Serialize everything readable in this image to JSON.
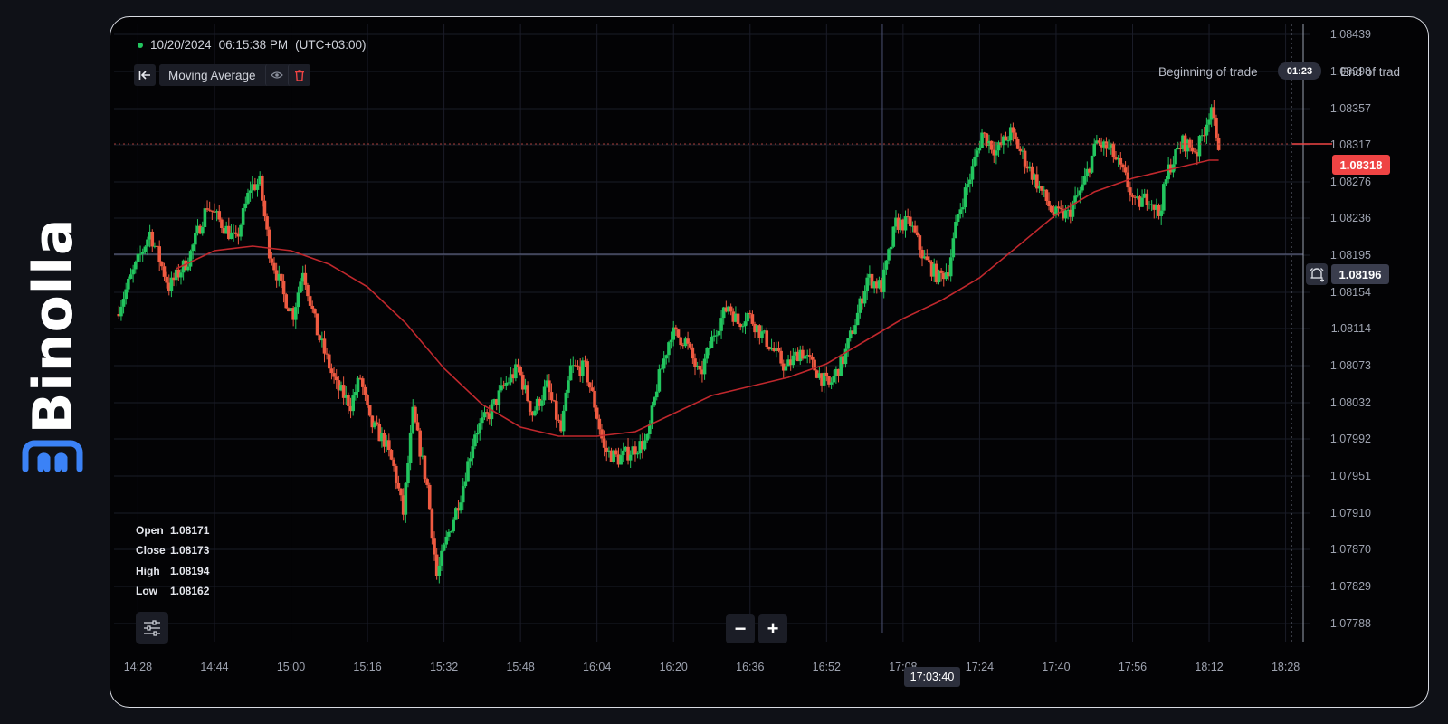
{
  "brand": {
    "name": "Binolla"
  },
  "header": {
    "datetime": "10/20/2024",
    "time": "06:15:38 PM",
    "timezone": "(UTC+03:00)"
  },
  "indicator": {
    "name": "Moving Average"
  },
  "trade": {
    "beginning_label": "Beginning of trade",
    "end_label": "End of trad",
    "timer": "01:23"
  },
  "current_price": "1.08318",
  "line_price": "1.08196",
  "crosshair_time": "17:03:40",
  "ohlc": {
    "open_label": "Open",
    "open": "1.08171",
    "close_label": "Close",
    "close": "1.08173",
    "high_label": "High",
    "high": "1.08194",
    "low_label": "Low",
    "low": "1.08162"
  },
  "zoom": {
    "out": "−",
    "in": "+"
  },
  "colors": {
    "up": "#22c55e",
    "down": "#ef5a41",
    "ma": "#c0282d",
    "price_badge": "#ef4444",
    "grid": "#1a1c28"
  },
  "chart_data": {
    "type": "candlestick",
    "y_ticks": [
      "1.08439",
      "1.08398",
      "1.08357",
      "1.08317",
      "1.08276",
      "1.08236",
      "1.08195",
      "1.08154",
      "1.08114",
      "1.08073",
      "1.08032",
      "1.07992",
      "1.07951",
      "1.07910",
      "1.07870",
      "1.07829",
      "1.07788"
    ],
    "x_ticks": [
      "14:28",
      "14:44",
      "15:00",
      "15:16",
      "15:32",
      "15:48",
      "16:04",
      "16:20",
      "16:36",
      "16:52",
      "17:08",
      "17:24",
      "17:40",
      "17:56",
      "18:12",
      "18:28"
    ],
    "ylim": [
      1.07768,
      1.0845
    ],
    "xlim": [
      "14:23",
      "18:33"
    ],
    "anchors": [
      [
        "14:24",
        1.0813
      ],
      [
        "14:27",
        1.0817
      ],
      [
        "14:31",
        1.0822
      ],
      [
        "14:35",
        1.0816
      ],
      [
        "14:39",
        1.0819
      ],
      [
        "14:43",
        1.0825
      ],
      [
        "14:46",
        1.0823
      ],
      [
        "14:49",
        1.0821
      ],
      [
        "14:52",
        1.0827
      ],
      [
        "14:54",
        1.08275
      ],
      [
        "14:56",
        1.082
      ],
      [
        "14:59",
        1.0815
      ],
      [
        "15:01",
        1.0813
      ],
      [
        "15:03",
        1.0818
      ],
      [
        "15:06",
        1.0811
      ],
      [
        "15:10",
        1.0805
      ],
      [
        "15:13",
        1.0803
      ],
      [
        "15:15",
        1.0806
      ],
      [
        "15:17",
        1.0801
      ],
      [
        "15:20",
        1.0799
      ],
      [
        "15:22",
        1.0796
      ],
      [
        "15:24",
        1.0791
      ],
      [
        "15:26",
        1.0802
      ],
      [
        "15:29",
        1.0794
      ],
      [
        "15:31",
        1.0784
      ],
      [
        "15:33",
        1.0788
      ],
      [
        "15:36",
        1.0793
      ],
      [
        "15:39",
        1.08
      ],
      [
        "15:42",
        1.0802
      ],
      [
        "15:45",
        1.0805
      ],
      [
        "15:48",
        1.0807
      ],
      [
        "15:51",
        1.0802
      ],
      [
        "15:54",
        1.0805
      ],
      [
        "15:57",
        1.08
      ],
      [
        "15:59",
        1.0807
      ],
      [
        "16:02",
        1.0807
      ],
      [
        "16:04",
        1.0803
      ],
      [
        "16:06",
        1.0798
      ],
      [
        "16:09",
        1.0797
      ],
      [
        "16:12",
        1.0798
      ],
      [
        "16:15",
        1.0799
      ],
      [
        "16:17",
        1.0805
      ],
      [
        "16:20",
        1.0811
      ],
      [
        "16:23",
        1.081
      ],
      [
        "16:26",
        1.0806
      ],
      [
        "16:29",
        1.0811
      ],
      [
        "16:32",
        1.0814
      ],
      [
        "16:34",
        1.0812
      ],
      [
        "16:36",
        1.0813
      ],
      [
        "16:40",
        1.081
      ],
      [
        "16:44",
        1.0807
      ],
      [
        "16:47",
        1.0809
      ],
      [
        "16:50",
        1.0807
      ],
      [
        "16:53",
        1.0805
      ],
      [
        "16:56",
        1.0808
      ],
      [
        "16:59",
        1.0813
      ],
      [
        "17:01",
        1.0817
      ],
      [
        "17:04",
        1.0816
      ],
      [
        "17:07",
        1.0823
      ],
      [
        "17:10",
        1.0823
      ],
      [
        "17:13",
        1.0819
      ],
      [
        "17:16",
        1.0817
      ],
      [
        "17:18",
        1.0818
      ],
      [
        "17:20",
        1.0824
      ],
      [
        "17:23",
        1.0829
      ],
      [
        "17:25",
        1.0833
      ],
      [
        "17:28",
        1.0831
      ],
      [
        "17:31",
        1.0833
      ],
      [
        "17:34",
        1.083
      ],
      [
        "17:37",
        1.0827
      ],
      [
        "17:40",
        1.0824
      ],
      [
        "17:43",
        1.0824
      ],
      [
        "17:46",
        1.0827
      ],
      [
        "17:49",
        1.0832
      ],
      [
        "17:52",
        1.0831
      ],
      [
        "17:55",
        1.0828
      ],
      [
        "17:57",
        1.0825
      ],
      [
        "18:00",
        1.0826
      ],
      [
        "18:02",
        1.0824
      ],
      [
        "18:04",
        1.0829
      ],
      [
        "18:07",
        1.0832
      ],
      [
        "18:10",
        1.0831
      ],
      [
        "18:13",
        1.0836
      ],
      [
        "18:14",
        1.08318
      ]
    ],
    "ma": [
      [
        "14:36",
        1.0818
      ],
      [
        "14:44",
        1.082
      ],
      [
        "14:52",
        1.08205
      ],
      [
        "15:00",
        1.082
      ],
      [
        "15:08",
        1.08185
      ],
      [
        "15:16",
        1.0816
      ],
      [
        "15:24",
        1.0812
      ],
      [
        "15:32",
        1.0807
      ],
      [
        "15:40",
        1.0803
      ],
      [
        "15:48",
        1.08005
      ],
      [
        "15:56",
        1.07995
      ],
      [
        "16:04",
        1.07995
      ],
      [
        "16:12",
        1.08
      ],
      [
        "16:20",
        1.0802
      ],
      [
        "16:28",
        1.0804
      ],
      [
        "16:36",
        1.0805
      ],
      [
        "16:44",
        1.0806
      ],
      [
        "16:52",
        1.08075
      ],
      [
        "17:00",
        1.081
      ],
      [
        "17:08",
        1.08125
      ],
      [
        "17:16",
        1.08145
      ],
      [
        "17:24",
        1.0817
      ],
      [
        "17:32",
        1.08205
      ],
      [
        "17:40",
        1.0824
      ],
      [
        "17:48",
        1.08265
      ],
      [
        "17:56",
        1.0828
      ],
      [
        "18:04",
        1.0829
      ],
      [
        "18:12",
        1.083
      ],
      [
        "18:14",
        1.083
      ]
    ]
  }
}
